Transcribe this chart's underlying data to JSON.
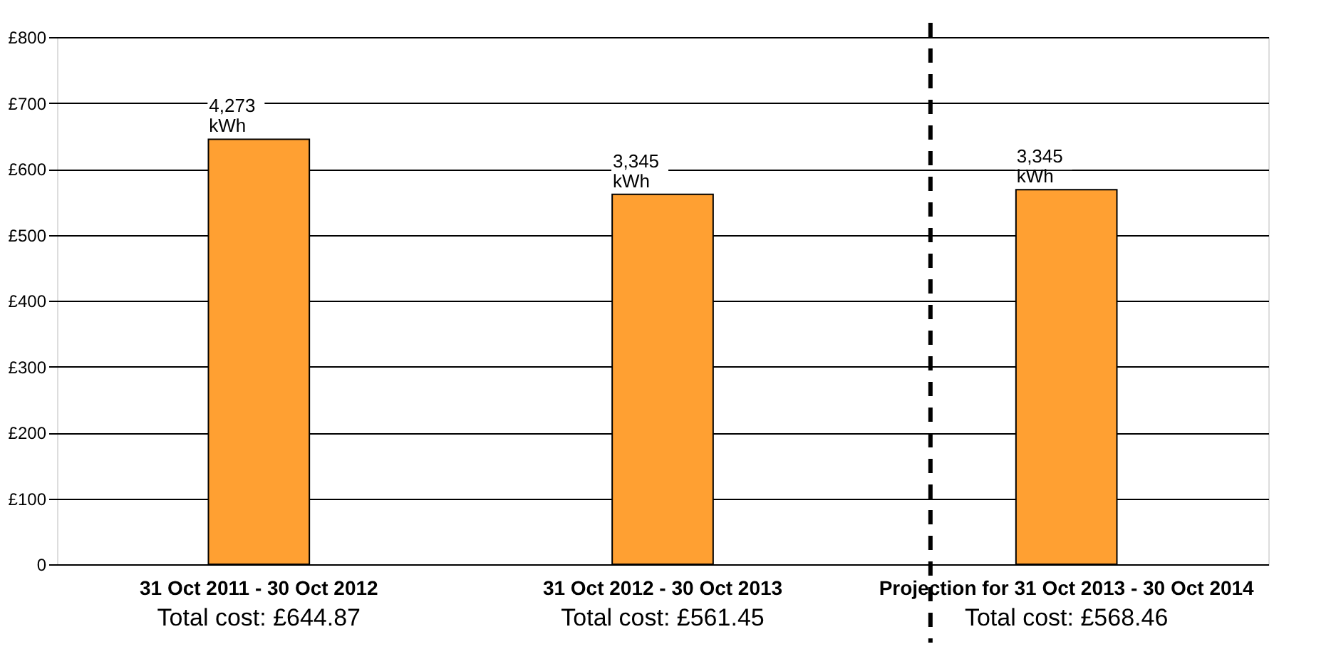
{
  "chart_data": {
    "type": "bar",
    "categories": [
      "31 Oct 2011 - 30 Oct 2012",
      "31 Oct 2012 - 30 Oct 2013",
      "Projection for 31 Oct 2013 - 30 Oct 2014"
    ],
    "values": [
      644.87,
      561.45,
      568.46
    ],
    "value_labels": [
      "Total cost: £644.87",
      "Total cost: £561.45",
      "Total cost: £568.46"
    ],
    "color": "#ffa032",
    "ylim": [
      0,
      800
    ],
    "yticks": [
      {
        "value": 0,
        "label": "0"
      },
      {
        "value": 100,
        "label": "£100"
      },
      {
        "value": 200,
        "label": "£200"
      },
      {
        "value": 300,
        "label": "£300"
      },
      {
        "value": 400,
        "label": "£400"
      },
      {
        "value": 500,
        "label": "£500"
      },
      {
        "value": 600,
        "label": "£600"
      },
      {
        "value": 700,
        "label": "£700"
      },
      {
        "value": 800,
        "label": "£800"
      }
    ],
    "grid": "y",
    "legend": false,
    "ref_lines": [
      {
        "axis": "x",
        "value": "Projection for 31 Oct 2013 - 30 Oct 2014",
        "line_style": "dashed",
        "color": "#000000"
      }
    ],
    "annotations": [
      {
        "text": "4,273 kWh",
        "x": "31 Oct 2011 - 30 Oct 2012",
        "y": 644.87
      },
      {
        "text": "3,345 kWh",
        "x": "31 Oct 2012 - 30 Oct 2013",
        "y": 561.45
      },
      {
        "text": "3,345 kWh",
        "x": "Projection for 31 Oct 2013 - 30 Oct 2014",
        "y": 568.46
      }
    ]
  }
}
